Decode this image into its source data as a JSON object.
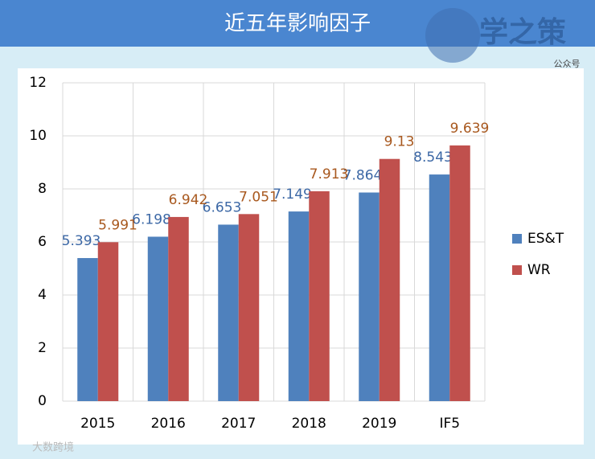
{
  "chart_data": {
    "type": "bar",
    "title": "近五年影响因子",
    "categories": [
      "2015",
      "2016",
      "2017",
      "2018",
      "2019",
      "IF5"
    ],
    "series": [
      {
        "name": "ES&T",
        "color": "#4f81bd",
        "label_color": "#3b67a5",
        "values": [
          5.393,
          6.198,
          6.653,
          7.149,
          7.864,
          8.543
        ]
      },
      {
        "name": "WR",
        "color": "#c0504d",
        "label_color": "#a8581e",
        "values": [
          5.991,
          6.942,
          7.051,
          7.913,
          9.13,
          9.639
        ]
      }
    ],
    "ylim": [
      0,
      12
    ],
    "yticks": [
      0,
      2,
      4,
      6,
      8,
      10,
      12
    ],
    "grid": true,
    "legend": "right"
  },
  "watermark": {
    "brand": "学之策",
    "sub": "公众号",
    "corner": "大数跨境"
  }
}
